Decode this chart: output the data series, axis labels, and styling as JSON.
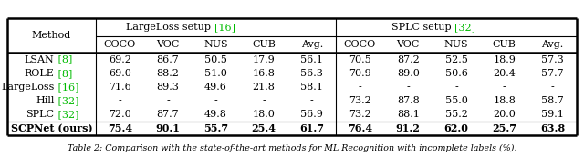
{
  "title": "Table 2: Comparison with the state-of-the-art methods for ML Recognition with incomplete labels (%).",
  "methods": [
    {
      "name": "LSAN",
      "ref": " [8]",
      "ll": [
        "69.2",
        "86.7",
        "50.5",
        "17.9",
        "56.1"
      ],
      "splc": [
        "70.5",
        "87.2",
        "52.5",
        "18.9",
        "57.3"
      ],
      "bold": false
    },
    {
      "name": "ROLE",
      "ref": " [8]",
      "ll": [
        "69.0",
        "88.2",
        "51.0",
        "16.8",
        "56.3"
      ],
      "splc": [
        "70.9",
        "89.0",
        "50.6",
        "20.4",
        "57.7"
      ],
      "bold": false
    },
    {
      "name": "LargeLoss",
      "ref": " [16]",
      "ll": [
        "71.6",
        "89.3",
        "49.6",
        "21.8",
        "58.1"
      ],
      "splc": [
        "-",
        "-",
        "-",
        "-",
        "-"
      ],
      "bold": false
    },
    {
      "name": "Hill",
      "ref": " [32]",
      "ll": [
        "-",
        "-",
        "-",
        "-",
        "-"
      ],
      "splc": [
        "73.2",
        "87.8",
        "55.0",
        "18.8",
        "58.7"
      ],
      "bold": false
    },
    {
      "name": "SPLC",
      "ref": " [32]",
      "ll": [
        "72.0",
        "87.7",
        "49.8",
        "18.0",
        "56.9"
      ],
      "splc": [
        "73.2",
        "88.1",
        "55.2",
        "20.0",
        "59.1"
      ],
      "bold": false
    },
    {
      "name": "SCPNet (ours)",
      "ref": "",
      "ll": [
        "75.4",
        "90.1",
        "55.7",
        "25.4",
        "61.7"
      ],
      "splc": [
        "76.4",
        "91.2",
        "62.0",
        "25.7",
        "63.8"
      ],
      "bold": true
    }
  ],
  "col_labels": [
    "COCO",
    "VOC",
    "NUS",
    "CUB",
    "Avg."
  ],
  "group1_header_black": "LargeLoss setup ",
  "group1_header_green": "[16]",
  "group2_header_black": "SPLC setup ",
  "group2_header_green": "[32]",
  "method_header": "Method",
  "green": "#00bb00",
  "black": "#000000",
  "bg": "#ffffff",
  "fs": 8.0,
  "fs_caption": 6.8,
  "caption_italic": true
}
